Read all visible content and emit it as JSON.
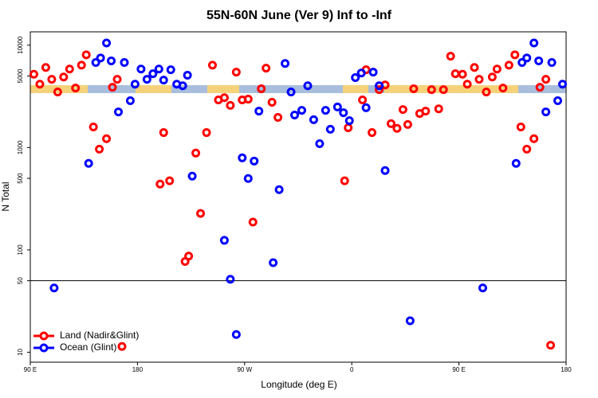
{
  "chart_data": {
    "type": "scatter",
    "title": "55N-60N June (Ver 9)   Inf to -Inf",
    "x_label": "Longitude (deg E)",
    "y_label": "N Total",
    "log_y": true,
    "hline": 50,
    "legend": "bottom-left",
    "xlim": [
      90,
      540
    ],
    "ylim": [
      8,
      13500
    ],
    "xticks": [
      {
        "value": 90,
        "label": "90 E"
      },
      180,
      {
        "value": 270,
        "label": "90 W"
      },
      {
        "value": 360,
        "label": "0"
      },
      {
        "value": 450,
        "label": "90 E"
      },
      {
        "value": 540,
        "label": "180"
      }
    ],
    "yticks": [
      10,
      50,
      100,
      500,
      1000,
      5000,
      10000
    ],
    "series": [
      {
        "name": "Land (Nadir&Glint)",
        "color": "#ff0000",
        "x": [
          93,
          98,
          103,
          108,
          113,
          118,
          123,
          128,
          133,
          137,
          143,
          148,
          154,
          159,
          163,
          167,
          199,
          202,
          207,
          220,
          223,
          229,
          233,
          238,
          243,
          248,
          253,
          258,
          263,
          268,
          273,
          277,
          284,
          288,
          293,
          298,
          354,
          357,
          369,
          372,
          377,
          383,
          388,
          393,
          398,
          403,
          407,
          412,
          417,
          422,
          427,
          433,
          437,
          443,
          447,
          453,
          457,
          463,
          467,
          473,
          478,
          482,
          487,
          492,
          497,
          502,
          507,
          513,
          518,
          523,
          527
        ],
        "values": [
          5200,
          4160,
          6060,
          4640,
          3490,
          4890,
          5850,
          3810,
          6380,
          8050,
          1590,
          965,
          1220,
          3880,
          4640,
          11.4,
          440,
          1400,
          473,
          77,
          87,
          883,
          227,
          1400,
          6380,
          2920,
          3070,
          2580,
          5450,
          2920,
          2970,
          187,
          3750,
          5960,
          2770,
          1970,
          473,
          1560,
          2920,
          5750,
          1400,
          3680,
          4090,
          1710,
          1540,
          2350,
          1680,
          3750,
          2150,
          2270,
          3680,
          2390,
          3680,
          7800,
          5260,
          5200,
          4160,
          6060,
          4640,
          3490,
          4890,
          5850,
          3810,
          6380,
          8050,
          1590,
          965,
          1220,
          3880,
          4640,
          11.7
        ]
      },
      {
        "name": "Ocean (Glint)",
        "color": "#0000ff",
        "x": [
          110,
          139,
          145,
          149,
          154,
          158,
          164,
          169,
          174,
          178,
          183,
          188,
          193,
          198,
          202,
          208,
          213,
          218,
          222,
          226,
          253,
          258,
          263,
          268,
          273,
          278,
          282,
          294,
          299,
          304,
          309,
          312,
          318,
          323,
          328,
          333,
          338,
          342,
          348,
          353,
          358,
          363,
          368,
          372,
          378,
          383,
          388,
          409,
          470,
          498,
          503,
          507,
          513,
          517,
          523,
          528,
          533,
          537
        ],
        "values": [
          42.5,
          700,
          6770,
          7500,
          10500,
          7030,
          2230,
          6770,
          2870,
          4160,
          5850,
          4640,
          5260,
          5850,
          4560,
          5750,
          4160,
          4010,
          5090,
          526,
          124,
          51.6,
          14.9,
          793,
          498,
          738,
          2270,
          75,
          388,
          6630,
          3490,
          2080,
          2310,
          4010,
          1870,
          1090,
          2310,
          1510,
          2490,
          2190,
          1830,
          4820,
          5350,
          2450,
          5450,
          4010,
          596,
          20.3,
          42.5,
          700,
          6770,
          7500,
          10500,
          7030,
          2230,
          6770,
          2870,
          4160
        ]
      }
    ]
  }
}
